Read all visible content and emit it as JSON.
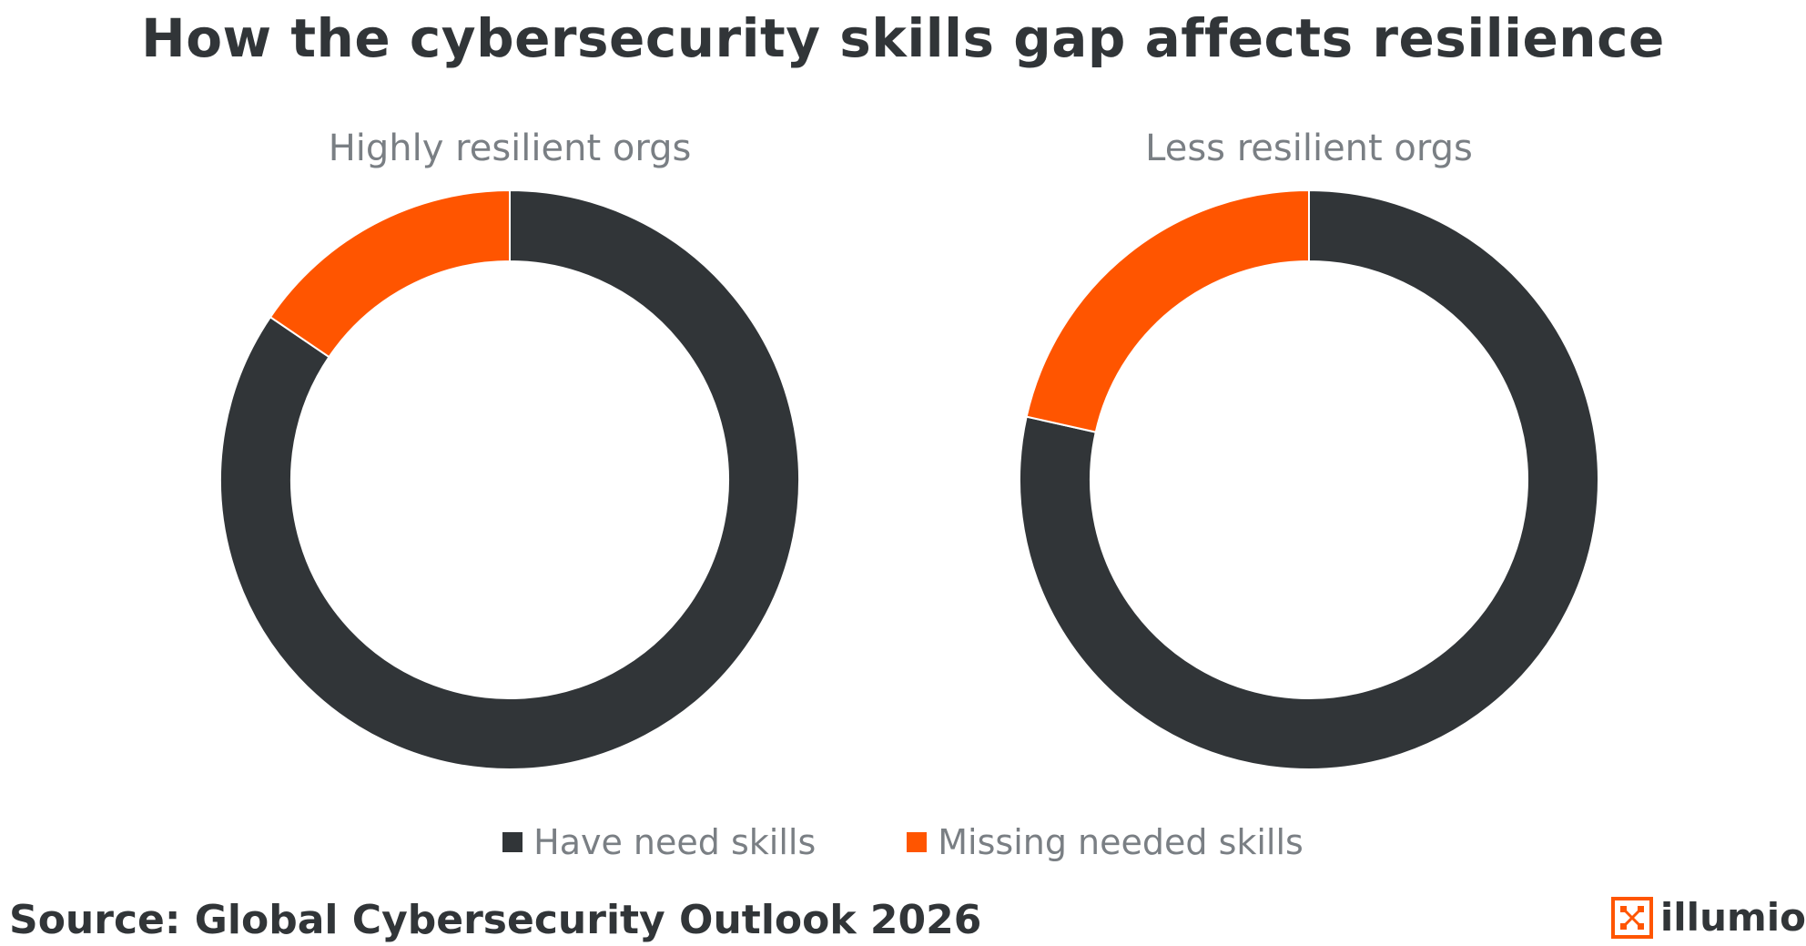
{
  "title": "How the cybersecurity skills gap affects resilience",
  "source": "Source:  Global Cybersecurity Outlook 2026",
  "logo": {
    "text": "illumio"
  },
  "colors": {
    "have_skills": "#313538",
    "missing_skills": "#ff5500",
    "title": "#313538",
    "subtitle": "#7a7f84"
  },
  "chart_data": [
    {
      "type": "pie",
      "variant": "donut",
      "title": "Highly resilient orgs",
      "labels": [
        "Have need skills",
        "Missing needed skills"
      ],
      "values": [
        84.5,
        15.5
      ],
      "colors": [
        "#313538",
        "#ff5500"
      ]
    },
    {
      "type": "pie",
      "variant": "donut",
      "title": "Less resilient orgs",
      "labels": [
        "Have need skills",
        "Missing needed skills"
      ],
      "values": [
        78.5,
        21.5
      ],
      "colors": [
        "#313538",
        "#ff5500"
      ]
    }
  ],
  "legend": [
    {
      "label": "Have need skills",
      "color": "#313538"
    },
    {
      "label": "Missing needed skills",
      "color": "#ff5500"
    }
  ]
}
